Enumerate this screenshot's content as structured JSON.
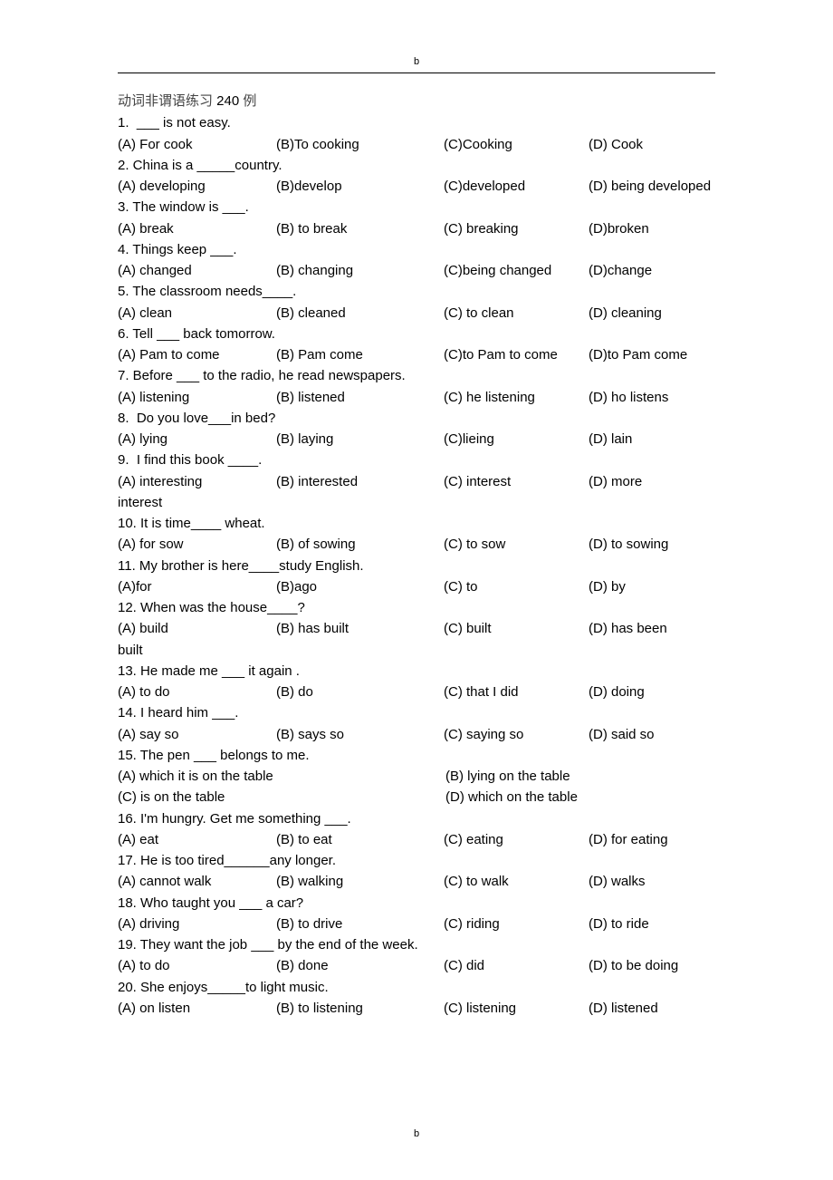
{
  "page": {
    "header_letter": "b",
    "footer_letter": "b",
    "background_color": "#ffffff",
    "text_color": "#000000",
    "title_cn_color": "#444444",
    "rule_color": "#000000",
    "font_family": "Verdana, Arial, sans-serif",
    "font_size_pt": 11,
    "line_height": 1.55
  },
  "title": {
    "cn": "动词非谓语练习",
    "num": " 240 ",
    "suffix": "例"
  },
  "questions": [
    {
      "n": "1.",
      "stem": "  ___ is not easy.",
      "opts": [
        "(A) For cook",
        "(B)To cooking",
        "(C)Cooking",
        "(D) Cook"
      ]
    },
    {
      "n": "2.",
      "stem": " China is a _____country.",
      "opts": [
        "(A) developing",
        "(B)develop",
        "(C)developed",
        "(D) being developed"
      ]
    },
    {
      "n": "3.",
      "stem": " The window is ___.",
      "opts": [
        "(A) break",
        "(B) to break",
        "(C) breaking",
        "(D)broken"
      ]
    },
    {
      "n": "4.",
      "stem": " Things keep ___.",
      "opts": [
        "(A) changed",
        "(B) changing",
        "(C)being changed",
        "(D)change"
      ]
    },
    {
      "n": "5.",
      "stem": " The classroom needs____.",
      "opts": [
        "(A) clean",
        "(B) cleaned",
        "(C) to clean",
        "(D) cleaning"
      ]
    },
    {
      "n": "6.",
      "stem": " Tell ___ back tomorrow.",
      "opts": [
        "(A) Pam to come",
        "(B) Pam come",
        "(C)to Pam to come",
        "(D)to Pam come"
      ]
    },
    {
      "n": "7.",
      "stem": " Before ___ to the radio, he read newspapers.",
      "opts": [
        "(A) listening",
        "(B) listened",
        "(C) he listening",
        "(D) ho listens"
      ]
    },
    {
      "n": "8.",
      "stem": "  Do you love___in bed?",
      "opts": [
        "(A) lying",
        "(B) laying",
        "(C)lieing",
        "(D) lain"
      ]
    },
    {
      "n": "9.",
      "stem": "  I find this book ____.",
      "wrap": true,
      "opts": [
        "(A) interesting",
        "(B) interested",
        "(C) interest",
        "(D) more"
      ],
      "wrap_tail": "interest"
    },
    {
      "n": "10.",
      "stem": " It is time____ wheat.",
      "opts": [
        "(A) for sow",
        "(B) of sowing",
        "(C)  to sow",
        "(D) to sowing"
      ]
    },
    {
      "n": "11.",
      "stem": " My brother is here____study English.",
      "opts": [
        "(A)for",
        "(B)ago",
        "(C) to",
        "(D) by"
      ]
    },
    {
      "n": "12.",
      "stem": " When was the house____?",
      "wrap": true,
      "opts": [
        "(A) build",
        "(B) has built",
        "(C) built",
        "(D) has been"
      ],
      "wrap_tail": "built"
    },
    {
      "n": "13.",
      "stem": " He made me ___ it again .",
      "opts": [
        "(A) to do",
        "(B) do",
        "(C) that I did",
        "(D) doing"
      ]
    },
    {
      "n": "14.",
      "stem": " I heard him ___.",
      "opts": [
        "(A) say so",
        "(B) says so",
        "(C) saying so",
        "(D) said so"
      ]
    },
    {
      "n": "15.",
      "stem": " The pen ___ belongs to me.",
      "two_by_two": true,
      "opts": [
        "(A) which it is on the table",
        "(B) lying on the table",
        "(C) is on the table",
        "(D) which on the table"
      ]
    },
    {
      "n": "16.",
      "stem": " I'm hungry. Get me something ___.",
      "opts": [
        "(A) eat",
        "(B) to eat",
        "(C) eating",
        "(D) for eating"
      ]
    },
    {
      "n": "17.",
      "stem": " He is too tired______any longer.",
      "opts": [
        "(A) cannot walk",
        "(B) walking",
        "(C) to walk",
        "(D) walks"
      ]
    },
    {
      "n": "18.",
      "stem": " Who taught you ___ a car?",
      "opts": [
        "(A) driving",
        "(B) to drive",
        "(C) riding",
        "(D) to ride"
      ]
    },
    {
      "n": "19.",
      "stem": " They want the job ___ by the end of the week.",
      "opts": [
        "(A) to do",
        "(B) done",
        "(C) did",
        "(D) to be doing"
      ]
    },
    {
      "n": "20.",
      "stem": " She enjoys_____to light music.",
      "opts": [
        "(A) on listen",
        "(B) to listening",
        "(C) listening",
        "(D) listened"
      ]
    }
  ]
}
